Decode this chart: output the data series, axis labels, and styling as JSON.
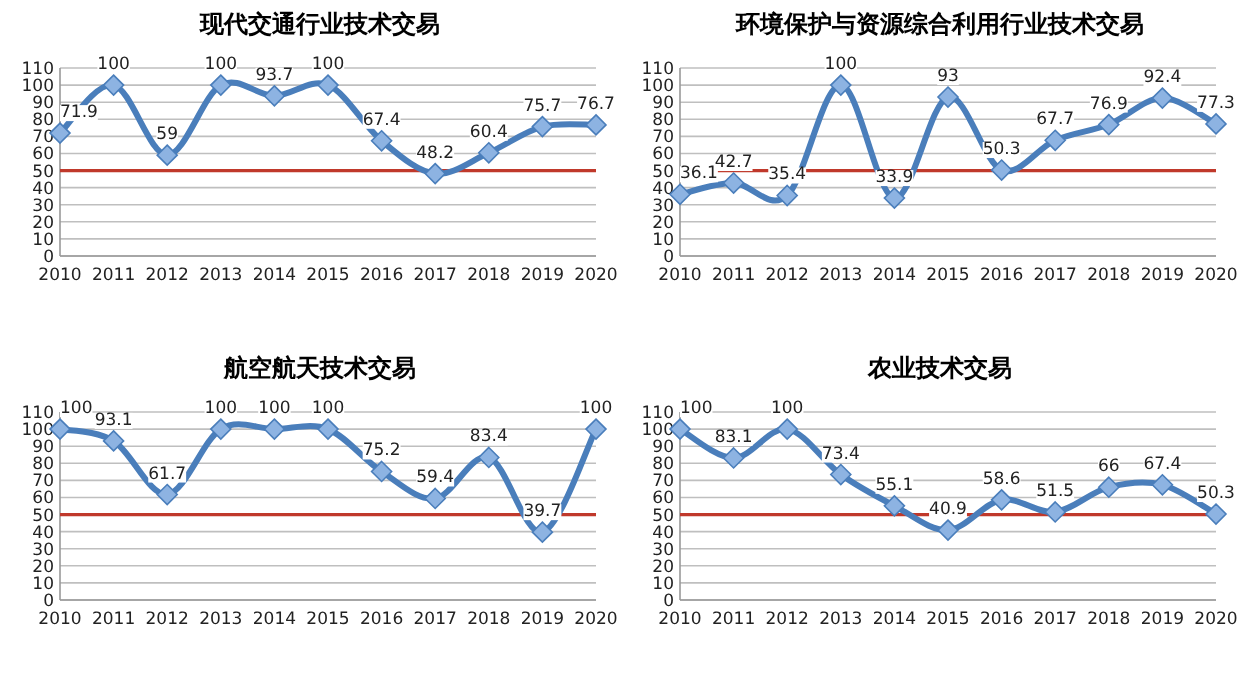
{
  "chart_data": [
    {
      "type": "line",
      "title": "现代交通行业技术交易",
      "categories": [
        "2010",
        "2011",
        "2012",
        "2013",
        "2014",
        "2015",
        "2016",
        "2017",
        "2018",
        "2019",
        "2020"
      ],
      "series": [
        {
          "color": "#4a7ebb",
          "values": [
            71.9,
            100,
            59,
            100,
            93.7,
            100,
            67.4,
            48.2,
            60.4,
            75.7,
            76.7
          ]
        }
      ],
      "ylim": [
        0,
        110
      ],
      "yticks": [
        0,
        10,
        20,
        30,
        40,
        50,
        60,
        70,
        80,
        90,
        100,
        110
      ],
      "grid": "y",
      "marker": "diamond",
      "data_labels": true,
      "ref_lines": [
        {
          "axis": "y",
          "value": 50,
          "color": "#c0392b"
        }
      ]
    },
    {
      "type": "line",
      "title": "环境保护与资源综合利用行业技术交易",
      "categories": [
        "2010",
        "2011",
        "2012",
        "2013",
        "2014",
        "2015",
        "2016",
        "2017",
        "2018",
        "2019",
        "2020"
      ],
      "series": [
        {
          "color": "#4a7ebb",
          "values": [
            36.1,
            42.7,
            35.4,
            100,
            33.9,
            93,
            50.3,
            67.7,
            76.9,
            92.4,
            77.3
          ]
        }
      ],
      "ylim": [
        0,
        110
      ],
      "yticks": [
        0,
        10,
        20,
        30,
        40,
        50,
        60,
        70,
        80,
        90,
        100,
        110
      ],
      "grid": "y",
      "marker": "diamond",
      "data_labels": true,
      "ref_lines": [
        {
          "axis": "y",
          "value": 50,
          "color": "#c0392b"
        }
      ]
    },
    {
      "type": "line",
      "title": "航空航天技术交易",
      "categories": [
        "2010",
        "2011",
        "2012",
        "2013",
        "2014",
        "2015",
        "2016",
        "2017",
        "2018",
        "2019",
        "2020"
      ],
      "series": [
        {
          "color": "#4a7ebb",
          "values": [
            100,
            93.1,
            61.7,
            100,
            100,
            100,
            75.2,
            59.4,
            83.4,
            39.7,
            100
          ]
        }
      ],
      "ylim": [
        0,
        110
      ],
      "yticks": [
        0,
        10,
        20,
        30,
        40,
        50,
        60,
        70,
        80,
        90,
        100,
        110
      ],
      "grid": "y",
      "marker": "diamond",
      "data_labels": true,
      "ref_lines": [
        {
          "axis": "y",
          "value": 50,
          "color": "#c0392b"
        }
      ]
    },
    {
      "type": "line",
      "title": "农业技术交易",
      "categories": [
        "2010",
        "2011",
        "2012",
        "2013",
        "2014",
        "2015",
        "2016",
        "2017",
        "2018",
        "2019",
        "2020"
      ],
      "series": [
        {
          "color": "#4a7ebb",
          "values": [
            100,
            83.1,
            100,
            73.4,
            55.1,
            40.9,
            58.6,
            51.5,
            66,
            67.4,
            50.3
          ]
        }
      ],
      "ylim": [
        0,
        110
      ],
      "yticks": [
        0,
        10,
        20,
        30,
        40,
        50,
        60,
        70,
        80,
        90,
        100,
        110
      ],
      "grid": "y",
      "marker": "diamond",
      "data_labels": true,
      "ref_lines": [
        {
          "axis": "y",
          "value": 50,
          "color": "#c0392b"
        }
      ]
    }
  ]
}
